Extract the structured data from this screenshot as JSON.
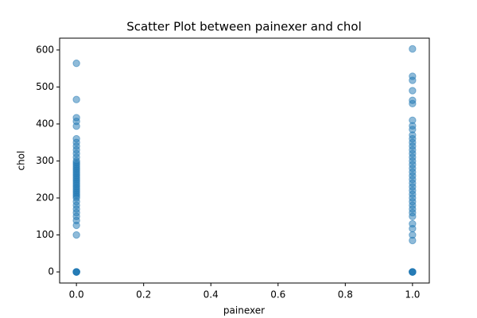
{
  "chart_data": {
    "type": "scatter",
    "title": "Scatter Plot between painexer and chol",
    "x_label": "painexer",
    "y_label": "chol",
    "color": "#1f77b4",
    "x": [
      0,
      0,
      0,
      0,
      0,
      0,
      0,
      0,
      0,
      0,
      0,
      0,
      0,
      0,
      0,
      0,
      0,
      0,
      0,
      0,
      0,
      0,
      0,
      0,
      0,
      0,
      0,
      0,
      0,
      0,
      0,
      0,
      0,
      0,
      0,
      0,
      0,
      0,
      0,
      0,
      0,
      0,
      0,
      0,
      0,
      1,
      1,
      1,
      1,
      1,
      1,
      1,
      1,
      1,
      1,
      1,
      1,
      1,
      1,
      1,
      1,
      1,
      1,
      1,
      1,
      1,
      1,
      1,
      1,
      1,
      1,
      1,
      1,
      1,
      1,
      1,
      1,
      1,
      1,
      1,
      1,
      1,
      1,
      1,
      1,
      1
    ],
    "values": [
      0,
      0,
      0,
      0,
      0,
      100,
      126,
      139,
      150,
      160,
      170,
      180,
      190,
      200,
      205,
      210,
      215,
      220,
      225,
      230,
      235,
      240,
      245,
      250,
      255,
      260,
      265,
      270,
      275,
      280,
      285,
      290,
      295,
      300,
      310,
      320,
      330,
      340,
      350,
      360,
      394,
      407,
      417,
      466,
      564,
      0,
      0,
      0,
      0,
      0,
      85,
      100,
      117,
      130,
      150,
      160,
      170,
      180,
      190,
      200,
      210,
      220,
      230,
      240,
      250,
      260,
      270,
      280,
      290,
      300,
      310,
      320,
      330,
      340,
      350,
      360,
      370,
      385,
      395,
      410,
      455,
      464,
      490,
      518,
      529,
      603
    ],
    "xlim": [
      -0.05,
      1.05
    ],
    "ylim": [
      -30,
      632
    ],
    "xticks": [
      {
        "value": 0,
        "label": "0.0"
      },
      0.2,
      0.4,
      0.6,
      0.8,
      {
        "value": 1,
        "label": "1.0"
      }
    ],
    "yticks": [
      0,
      100,
      200,
      300,
      400,
      500,
      600
    ]
  }
}
